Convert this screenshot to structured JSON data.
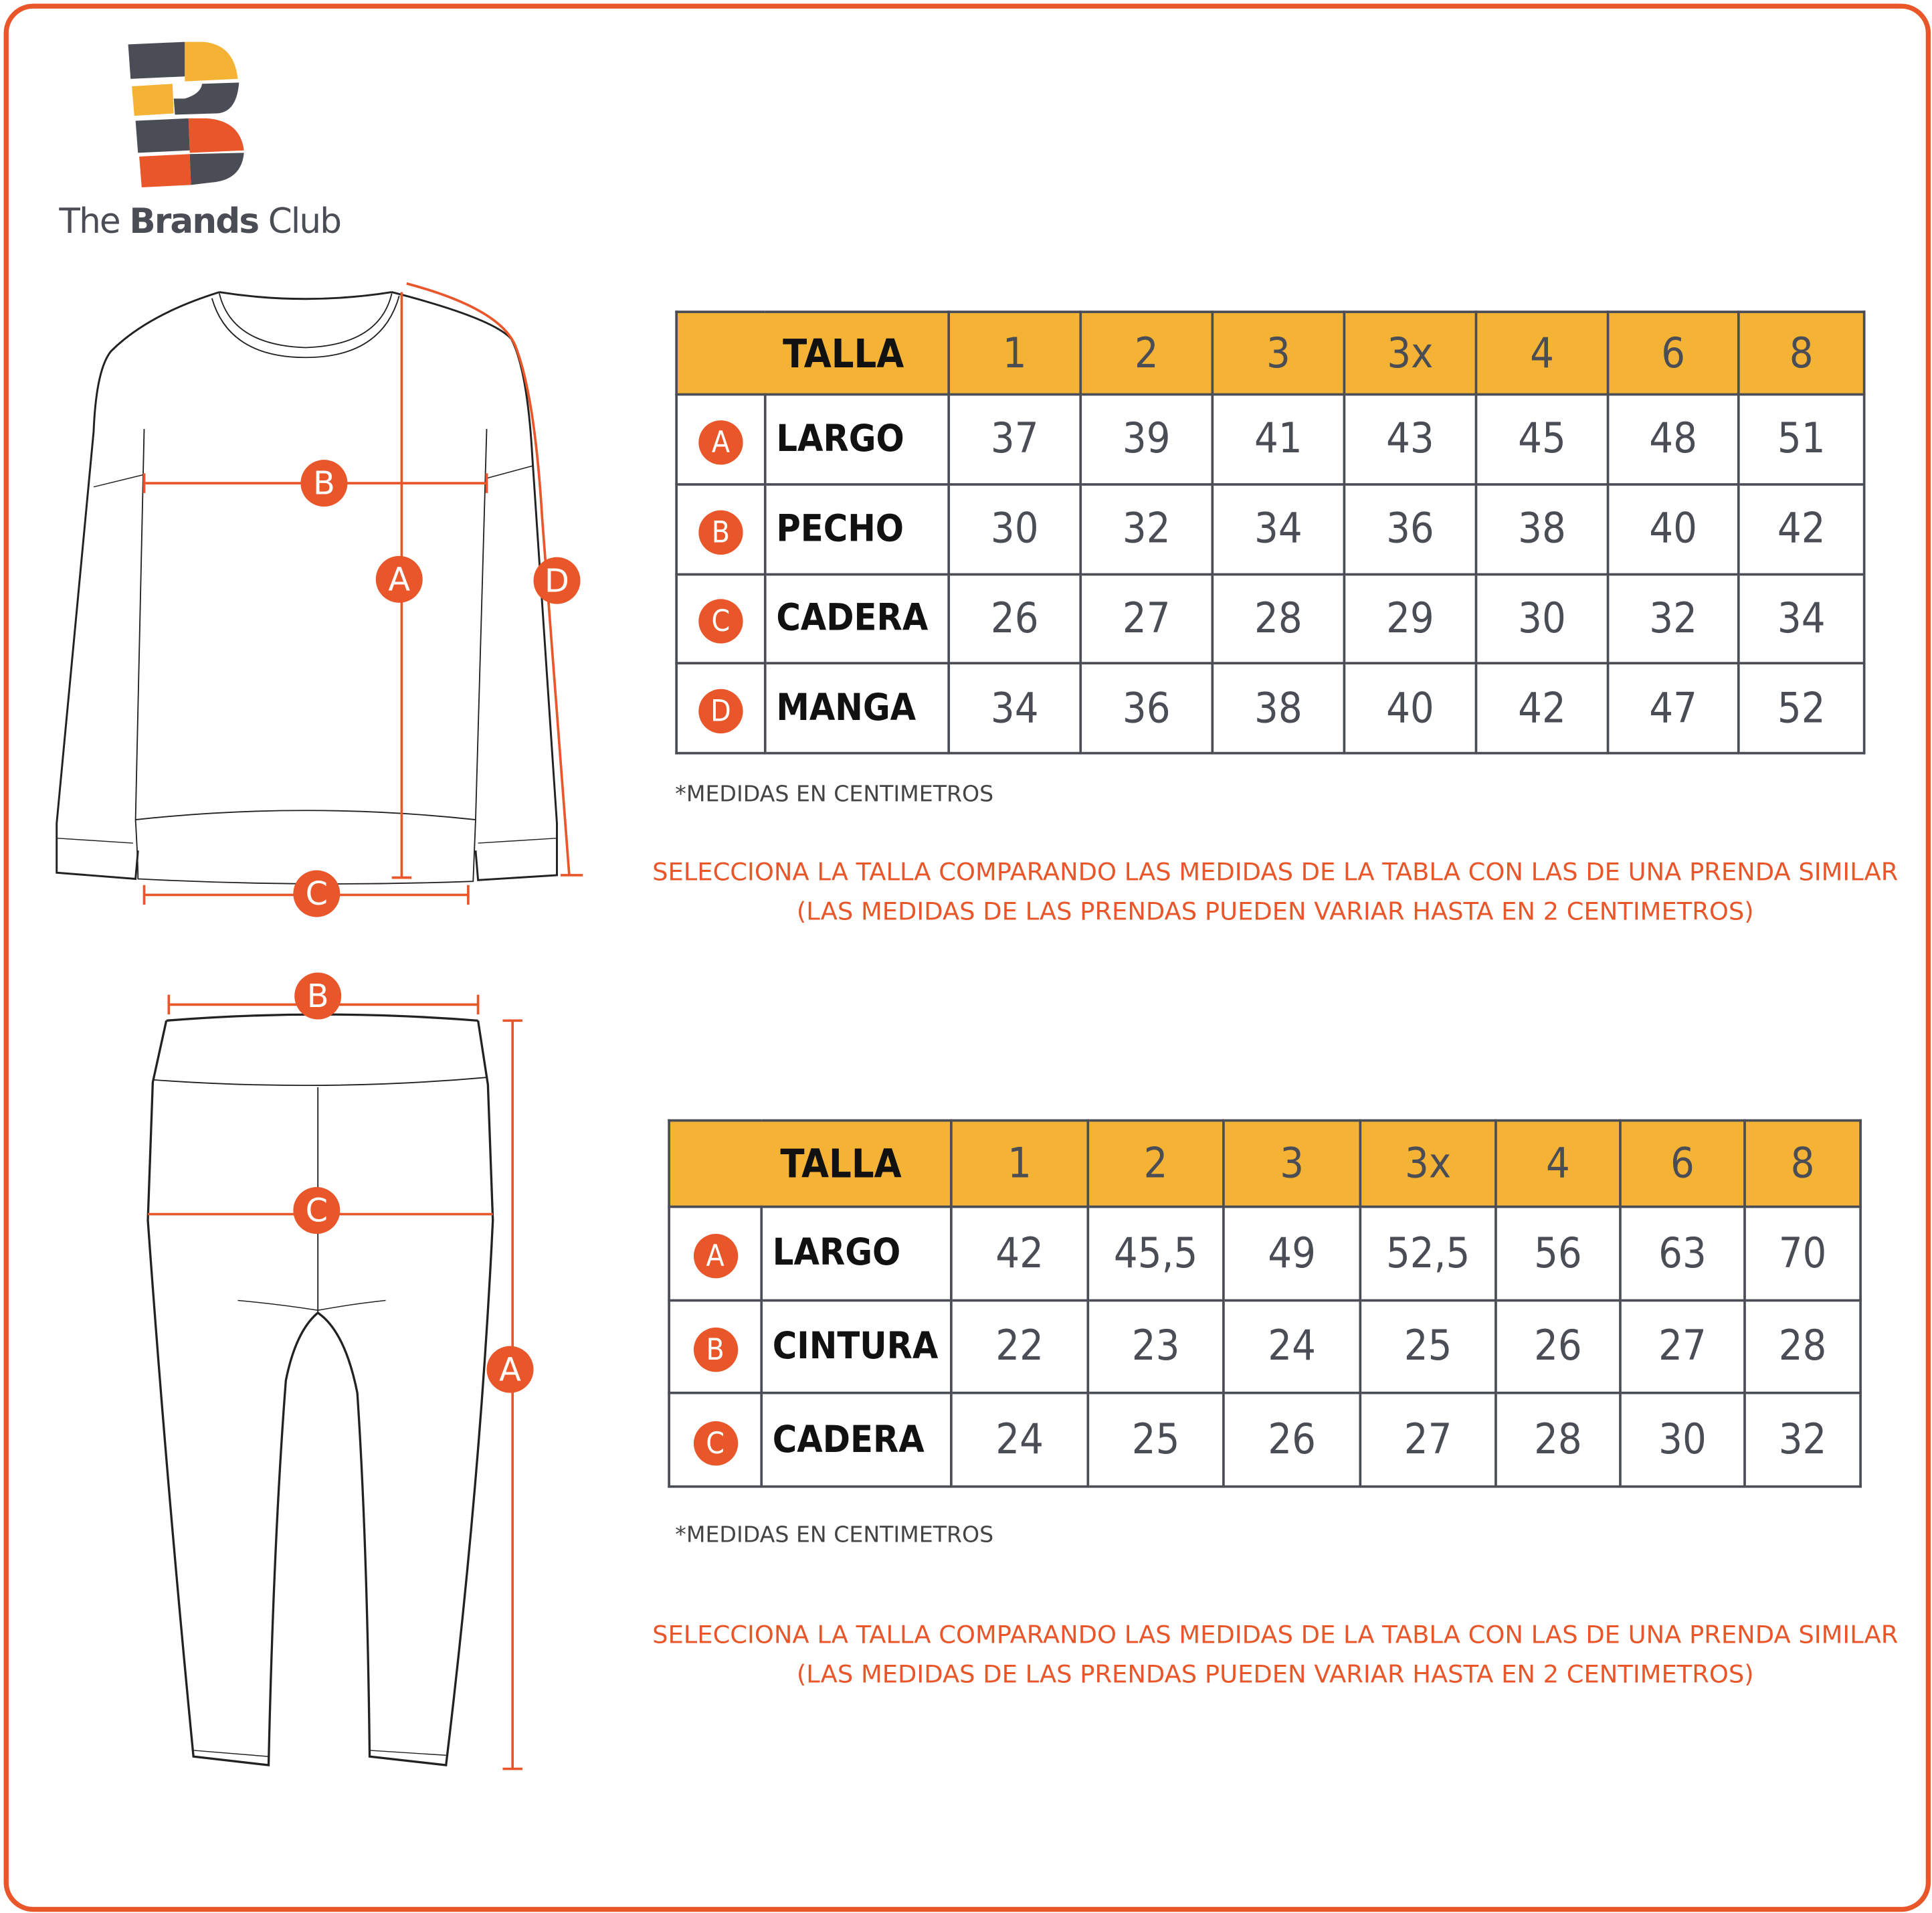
{
  "brand": {
    "name_light": "The ",
    "name_bold": "Brands",
    "name_end": " Club",
    "colors": {
      "orange": "#E8562A",
      "yellow": "#F5B335",
      "gray": "#4a4d55"
    }
  },
  "top_table": {
    "header_label": "TALLA",
    "sizes": [
      "1",
      "2",
      "3",
      "3x",
      "4",
      "6",
      "8"
    ],
    "rows": [
      {
        "letter": "A",
        "label": "LARGO",
        "values": [
          "37",
          "39",
          "41",
          "43",
          "45",
          "48",
          "51"
        ]
      },
      {
        "letter": "B",
        "label": "PECHO",
        "values": [
          "30",
          "32",
          "34",
          "36",
          "38",
          "40",
          "42"
        ]
      },
      {
        "letter": "C",
        "label": "CADERA",
        "values": [
          "26",
          "27",
          "28",
          "29",
          "30",
          "32",
          "34"
        ]
      },
      {
        "letter": "D",
        "label": "MANGA",
        "values": [
          "34",
          "36",
          "38",
          "40",
          "42",
          "47",
          "52"
        ]
      }
    ],
    "note": "*MEDIDAS EN CENTIMETROS",
    "instruction_1": "SELECCIONA LA TALLA COMPARANDO LAS MEDIDAS DE LA TABLA CON LAS DE UNA PRENDA SIMILAR",
    "instruction_2": "(LAS MEDIDAS DE LAS PRENDAS PUEDEN VARIAR HASTA EN 2 CENTIMETROS)"
  },
  "bottom_table": {
    "header_label": "TALLA",
    "sizes": [
      "1",
      "2",
      "3",
      "3x",
      "4",
      "6",
      "8"
    ],
    "rows": [
      {
        "letter": "A",
        "label": "LARGO",
        "values": [
          "42",
          "45,5",
          "49",
          "52,5",
          "56",
          "63",
          "70"
        ]
      },
      {
        "letter": "B",
        "label": "CINTURA",
        "values": [
          "22",
          "23",
          "24",
          "25",
          "26",
          "27",
          "28"
        ]
      },
      {
        "letter": "C",
        "label": "CADERA",
        "values": [
          "24",
          "25",
          "26",
          "27",
          "28",
          "30",
          "32"
        ]
      }
    ],
    "note": "*MEDIDAS EN CENTIMETROS",
    "instruction_1": "SELECCIONA LA TALLA COMPARANDO LAS MEDIDAS DE LA TABLA CON LAS DE UNA PRENDA SIMILAR",
    "instruction_2": "(LAS MEDIDAS DE LAS PRENDAS PUEDEN VARIAR HASTA EN 2 CENTIMETROS)"
  },
  "diagram_labels": {
    "sweater": [
      "A",
      "B",
      "C",
      "D"
    ],
    "pants": [
      "A",
      "B",
      "C"
    ]
  }
}
